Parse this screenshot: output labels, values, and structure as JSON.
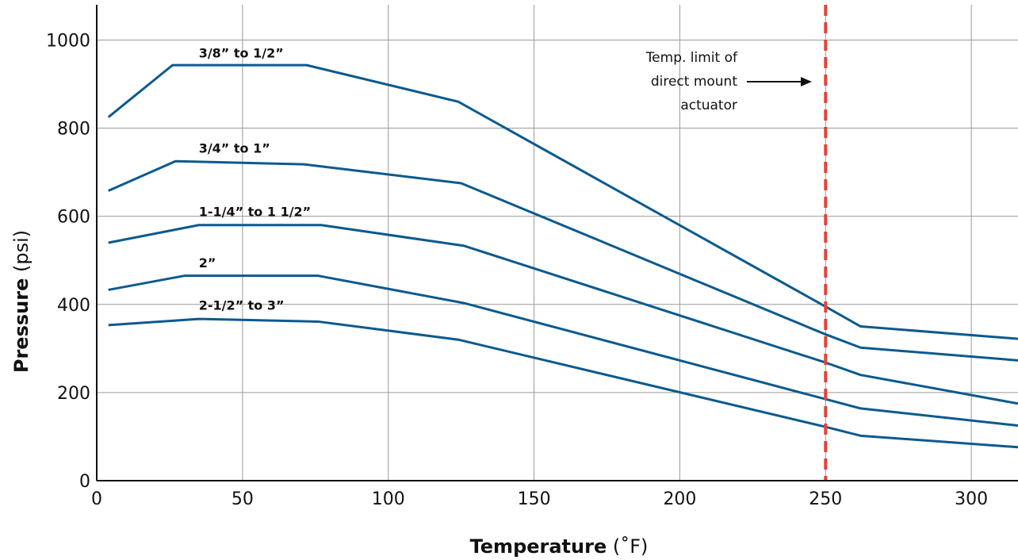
{
  "chart_data": {
    "type": "line",
    "xlabel_bold": "Temperature",
    "xlabel_unit": "(˚F)",
    "ylabel_bold": "Pressure",
    "ylabel_unit": "(psi)",
    "xlim": [
      0,
      316
    ],
    "ylim": [
      0,
      1080
    ],
    "xticks": [
      0,
      50,
      100,
      150,
      200,
      250,
      300
    ],
    "yticks": [
      0,
      200,
      400,
      600,
      800,
      1000
    ],
    "grid": true,
    "colors": {
      "series": "#0b5a8e",
      "limit_line": "#e2433a",
      "grid": "#9a9a9a"
    },
    "series": [
      {
        "name": "3/8” to 1/2”",
        "label_at": [
          35,
          960
        ],
        "x": [
          4,
          26,
          72,
          124,
          250,
          262,
          316
        ],
        "y": [
          825,
          943,
          943,
          860,
          395,
          350,
          322
        ]
      },
      {
        "name": "3/4” to 1”",
        "label_at": [
          35,
          744
        ],
        "x": [
          4,
          27,
          71,
          125,
          250,
          262,
          316
        ],
        "y": [
          658,
          725,
          718,
          675,
          332,
          302,
          273
        ]
      },
      {
        "name": "1-1/4” to 1 1/2”",
        "label_at": [
          35,
          600
        ],
        "x": [
          4,
          35,
          77,
          126,
          250,
          262,
          316
        ],
        "y": [
          540,
          580,
          580,
          533,
          268,
          240,
          175
        ]
      },
      {
        "name": "2”",
        "label_at": [
          35,
          484
        ],
        "x": [
          4,
          30,
          76,
          126,
          250,
          262,
          316
        ],
        "y": [
          433,
          465,
          465,
          403,
          185,
          164,
          125
        ]
      },
      {
        "name": "2-1/2” to 3”",
        "label_at": [
          35,
          388
        ],
        "x": [
          4,
          35,
          76,
          124,
          250,
          262,
          316
        ],
        "y": [
          353,
          367,
          361,
          320,
          122,
          102,
          76
        ]
      }
    ],
    "reference_line": {
      "x": 250,
      "style": "dashed"
    },
    "annotation": {
      "lines": [
        "Temp. limit of",
        "direct mount",
        "actuator"
      ],
      "arrow": "right"
    }
  }
}
